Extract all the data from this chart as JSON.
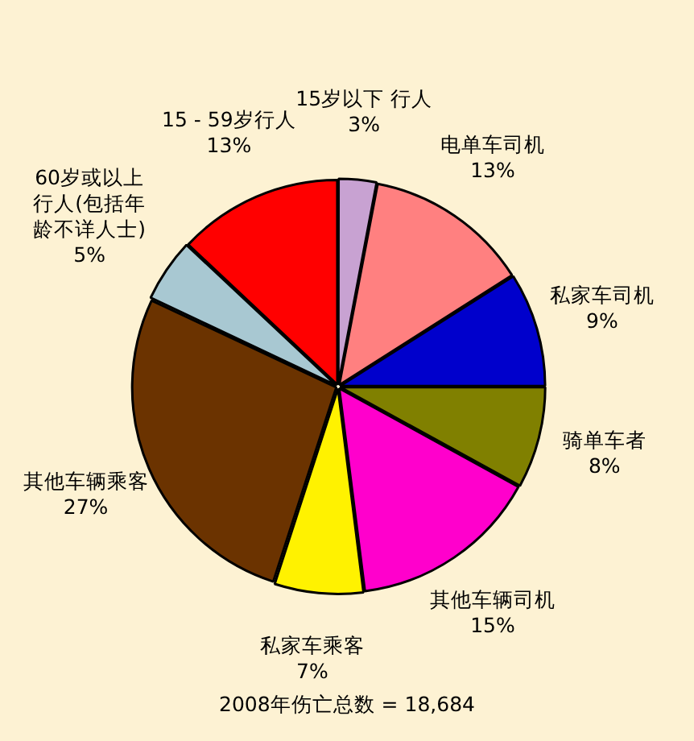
{
  "chart_data": {
    "type": "pie",
    "categories": [
      "15岁以下 行人",
      "电单车司机",
      "私家车司机",
      "骑单车者",
      "其他车辆司机",
      "私家车乘客",
      "其他车辆乘客",
      "60岁或以上行人(包括年龄不详人士)",
      "15 - 59岁行人"
    ],
    "values": [
      3,
      13,
      9,
      8,
      15,
      7,
      27,
      5,
      13
    ],
    "value_labels": [
      "3%",
      "13%",
      "9%",
      "8%",
      "15%",
      "7%",
      "27%",
      "5%",
      "13%"
    ],
    "colors": [
      "#c8a2d2",
      "#ff8080",
      "#0000cc",
      "#808000",
      "#ff00cc",
      "#fff200",
      "#6b3300",
      "#a8c8d2",
      "#ff0000"
    ],
    "legend": false,
    "annotations": [
      "2008年伤亡总数 = 18,684"
    ]
  }
}
